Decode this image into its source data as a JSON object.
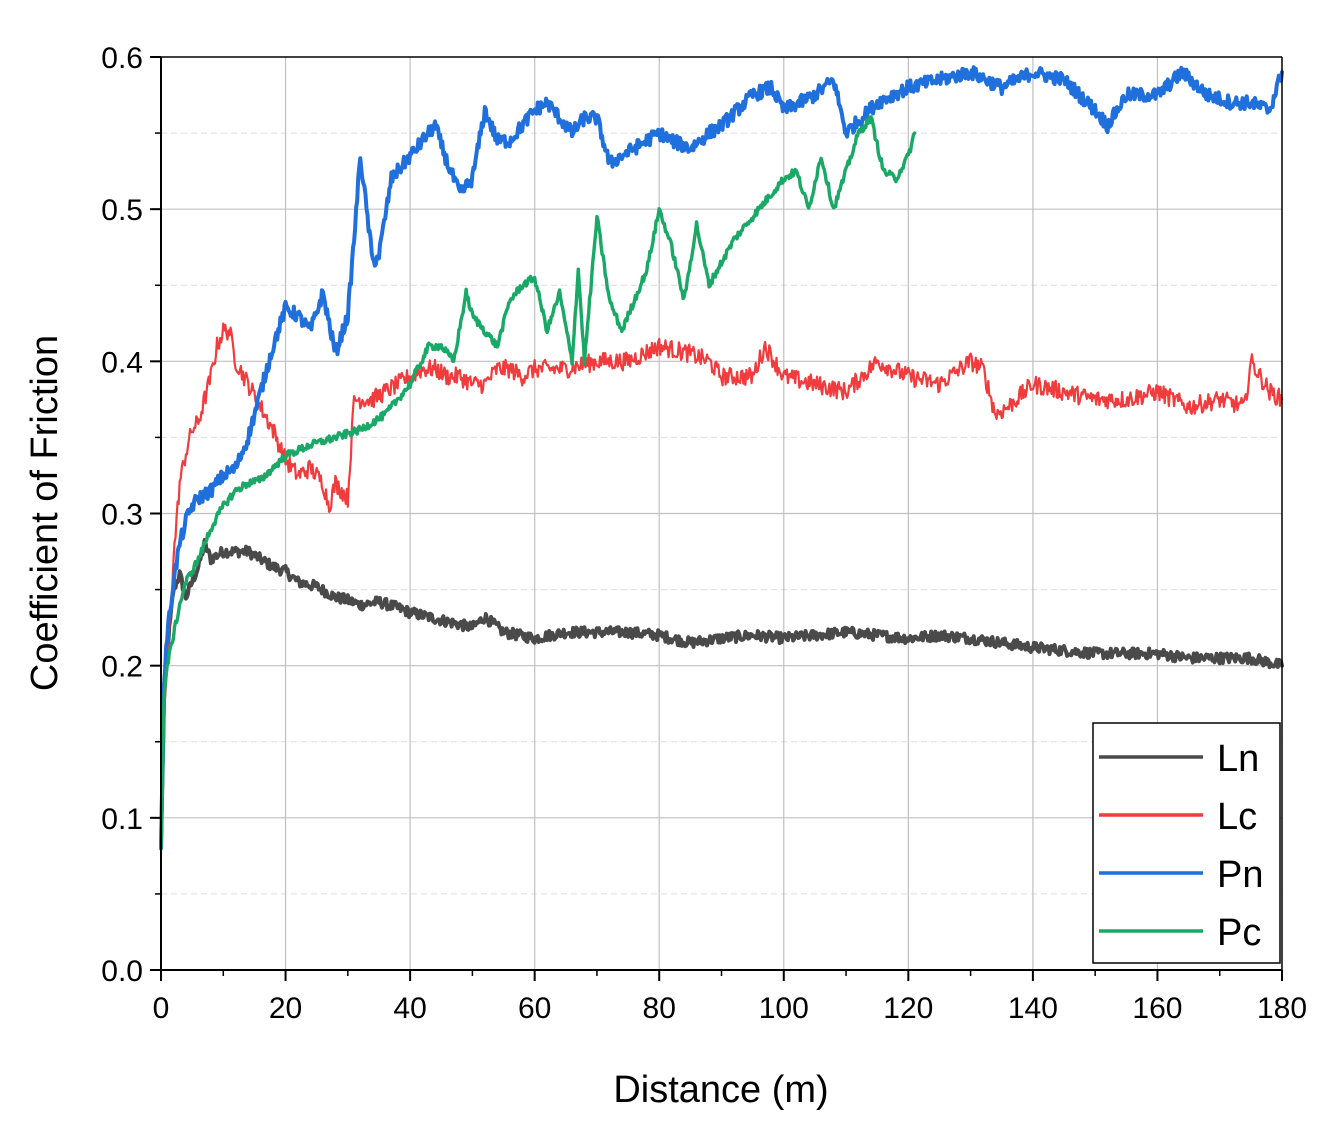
{
  "chart_data": {
    "type": "line",
    "title": "",
    "xlabel": "Distance (m)",
    "ylabel": "Coefficient of Friction",
    "xlim": [
      0,
      180
    ],
    "ylim": [
      0.0,
      0.6
    ],
    "xticks": [
      "0",
      "20",
      "40",
      "60",
      "80",
      "100",
      "120",
      "140",
      "160",
      "180"
    ],
    "yticks": [
      "0.0",
      "0.1",
      "0.2",
      "0.3",
      "0.4",
      "0.5",
      "0.6"
    ],
    "grid": true,
    "legend_position": "bottom-right",
    "series": [
      {
        "name": "Ln",
        "color": "#4a4a4a",
        "x": [
          0,
          0.5,
          1,
          2,
          3,
          4,
          5,
          6,
          7,
          8,
          10,
          12,
          14,
          16,
          18,
          20,
          22,
          25,
          28,
          30,
          32,
          35,
          38,
          40,
          45,
          50,
          52,
          55,
          60,
          65,
          70,
          75,
          80,
          85,
          90,
          95,
          100,
          105,
          110,
          115,
          120,
          125,
          130,
          135,
          140,
          145,
          150,
          155,
          160,
          165,
          170,
          175,
          180
        ],
        "y": [
          0.08,
          0.18,
          0.21,
          0.25,
          0.26,
          0.245,
          0.255,
          0.265,
          0.28,
          0.27,
          0.275,
          0.275,
          0.275,
          0.27,
          0.265,
          0.262,
          0.255,
          0.252,
          0.245,
          0.243,
          0.24,
          0.242,
          0.238,
          0.235,
          0.23,
          0.225,
          0.232,
          0.222,
          0.218,
          0.222,
          0.222,
          0.222,
          0.22,
          0.215,
          0.218,
          0.22,
          0.218,
          0.22,
          0.222,
          0.22,
          0.218,
          0.22,
          0.218,
          0.215,
          0.212,
          0.21,
          0.208,
          0.208,
          0.208,
          0.205,
          0.205,
          0.205,
          0.2
        ]
      },
      {
        "name": "Lc",
        "color": "#f03c3c",
        "x": [
          0,
          0.5,
          1,
          2,
          3,
          4,
          5,
          6,
          7,
          8,
          9,
          10,
          11,
          12,
          14,
          16,
          18,
          20,
          22,
          24,
          26,
          27,
          28,
          30,
          31,
          32,
          34,
          36,
          38,
          40,
          42,
          44,
          46,
          48,
          50,
          52,
          54,
          56,
          58,
          60,
          65,
          70,
          75,
          80,
          85,
          88,
          90,
          95,
          97,
          100,
          105,
          110,
          115,
          120,
          125,
          130,
          132,
          134,
          136,
          140,
          145,
          150,
          155,
          160,
          165,
          170,
          174,
          175,
          178,
          180
        ],
        "y": [
          0.08,
          0.17,
          0.2,
          0.27,
          0.32,
          0.34,
          0.355,
          0.36,
          0.375,
          0.39,
          0.41,
          0.42,
          0.42,
          0.4,
          0.385,
          0.37,
          0.355,
          0.335,
          0.325,
          0.33,
          0.32,
          0.305,
          0.32,
          0.31,
          0.375,
          0.375,
          0.375,
          0.38,
          0.385,
          0.39,
          0.395,
          0.395,
          0.39,
          0.39,
          0.385,
          0.385,
          0.395,
          0.395,
          0.39,
          0.395,
          0.395,
          0.4,
          0.4,
          0.41,
          0.405,
          0.4,
          0.39,
          0.39,
          0.41,
          0.39,
          0.385,
          0.38,
          0.4,
          0.39,
          0.385,
          0.4,
          0.395,
          0.365,
          0.37,
          0.385,
          0.38,
          0.375,
          0.375,
          0.38,
          0.37,
          0.375,
          0.37,
          0.4,
          0.38,
          0.375
        ]
      },
      {
        "name": "Pn",
        "color": "#1f6fdc",
        "x": [
          0,
          0.5,
          1,
          2,
          3,
          4,
          5,
          6,
          8,
          10,
          12,
          14,
          16,
          18,
          20,
          22,
          24,
          26,
          28,
          30,
          31,
          32,
          33,
          34,
          35,
          37,
          40,
          42,
          44,
          46,
          48,
          50,
          52,
          54,
          56,
          58,
          60,
          62,
          64,
          66,
          68,
          70,
          72,
          74,
          76,
          78,
          80,
          82,
          85,
          88,
          90,
          95,
          98,
          100,
          105,
          108,
          110,
          115,
          120,
          125,
          130,
          135,
          140,
          145,
          150,
          152,
          155,
          160,
          164,
          168,
          172,
          175,
          178,
          180
        ],
        "y": [
          0.08,
          0.19,
          0.22,
          0.255,
          0.28,
          0.295,
          0.305,
          0.31,
          0.315,
          0.325,
          0.33,
          0.35,
          0.38,
          0.41,
          0.435,
          0.43,
          0.42,
          0.445,
          0.405,
          0.43,
          0.48,
          0.535,
          0.5,
          0.465,
          0.47,
          0.52,
          0.535,
          0.545,
          0.555,
          0.53,
          0.51,
          0.52,
          0.565,
          0.545,
          0.545,
          0.555,
          0.565,
          0.57,
          0.56,
          0.55,
          0.56,
          0.56,
          0.53,
          0.535,
          0.54,
          0.545,
          0.55,
          0.545,
          0.54,
          0.55,
          0.555,
          0.575,
          0.58,
          0.565,
          0.575,
          0.585,
          0.55,
          0.57,
          0.58,
          0.585,
          0.59,
          0.58,
          0.59,
          0.585,
          0.565,
          0.555,
          0.575,
          0.575,
          0.59,
          0.575,
          0.57,
          0.57,
          0.565,
          0.59
        ]
      },
      {
        "name": "Pc",
        "color": "#1aa867",
        "x": [
          0,
          0.5,
          1,
          2,
          3,
          4,
          6,
          8,
          10,
          12,
          14,
          16,
          18,
          20,
          24,
          28,
          32,
          36,
          40,
          43,
          45,
          47,
          49,
          50,
          52,
          54,
          56,
          58,
          60,
          62,
          64,
          66,
          67,
          68,
          70,
          72,
          74,
          76,
          78,
          80,
          82,
          84,
          86,
          88,
          90,
          92,
          94,
          96,
          98,
          100,
          102,
          104,
          106,
          108,
          110,
          112,
          114,
          116,
          118,
          120,
          121
        ],
        "y": [
          0.08,
          0.18,
          0.2,
          0.22,
          0.24,
          0.255,
          0.27,
          0.29,
          0.305,
          0.315,
          0.32,
          0.322,
          0.33,
          0.338,
          0.345,
          0.35,
          0.355,
          0.365,
          0.385,
          0.41,
          0.41,
          0.4,
          0.445,
          0.43,
          0.42,
          0.41,
          0.44,
          0.45,
          0.455,
          0.42,
          0.445,
          0.4,
          0.46,
          0.4,
          0.495,
          0.44,
          0.42,
          0.44,
          0.46,
          0.5,
          0.475,
          0.44,
          0.49,
          0.45,
          0.465,
          0.48,
          0.49,
          0.5,
          0.51,
          0.52,
          0.525,
          0.5,
          0.535,
          0.5,
          0.525,
          0.55,
          0.56,
          0.525,
          0.52,
          0.535,
          0.55
        ]
      }
    ]
  }
}
